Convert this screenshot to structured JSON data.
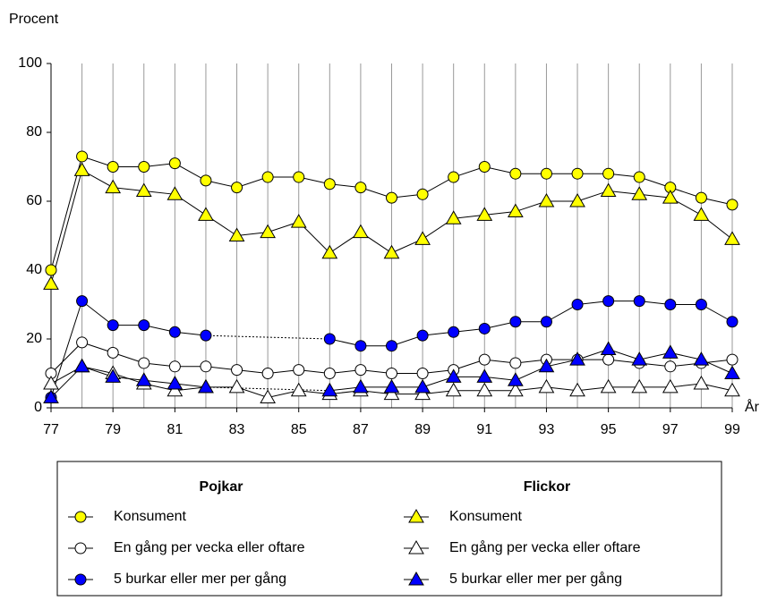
{
  "chart_data": {
    "type": "line",
    "y_label": "Procent",
    "x_label": "År",
    "x": [
      77,
      78,
      79,
      80,
      81,
      82,
      83,
      84,
      85,
      86,
      87,
      88,
      89,
      90,
      91,
      92,
      93,
      94,
      95,
      96,
      97,
      98,
      99
    ],
    "xlim": [
      77,
      99
    ],
    "xticks": [
      77,
      79,
      81,
      83,
      85,
      87,
      89,
      91,
      93,
      95,
      97,
      99
    ],
    "ylim": [
      0,
      100
    ],
    "yticks": [
      0,
      20,
      40,
      60,
      80,
      100
    ],
    "legend_titles": [
      "Pojkar",
      "Flickor"
    ],
    "series": [
      {
        "name": "Konsument",
        "color": "#ffff00",
        "marker": "circle",
        "values": [
          40,
          73,
          70,
          70,
          71,
          66,
          64,
          67,
          67,
          65,
          64,
          61,
          62,
          67,
          70,
          68,
          68,
          68,
          68,
          67,
          64,
          61,
          59
        ]
      },
      {
        "name": "En gång per vecka eller oftare",
        "color": "#ffffff",
        "marker": "circle",
        "values": [
          10,
          19,
          16,
          13,
          12,
          12,
          11,
          10,
          11,
          10,
          11,
          10,
          10,
          11,
          14,
          13,
          14,
          14,
          14,
          13,
          12,
          13,
          14
        ]
      },
      {
        "name": "5 burkar eller mer per gång",
        "color": "#0000ff",
        "marker": "circle",
        "values": [
          3,
          31,
          24,
          24,
          22,
          21,
          null,
          null,
          null,
          20,
          18,
          18,
          21,
          22,
          23,
          25,
          25,
          30,
          31,
          31,
          30,
          30,
          25
        ]
      },
      {
        "name": "Konsument",
        "color": "#ffff00",
        "marker": "triangle",
        "values": [
          36,
          69,
          64,
          63,
          62,
          56,
          50,
          51,
          54,
          45,
          51,
          45,
          49,
          55,
          56,
          57,
          60,
          60,
          63,
          62,
          61,
          56,
          49
        ]
      },
      {
        "name": "En gång per vecka eller oftare",
        "color": "#ffffff",
        "marker": "triangle",
        "values": [
          7,
          12,
          10,
          7,
          5,
          6,
          6,
          3,
          5,
          4,
          5,
          4,
          4,
          5,
          5,
          5,
          6,
          5,
          6,
          6,
          6,
          7,
          5
        ]
      },
      {
        "name": "5 burkar eller mer per gång",
        "color": "#0000ff",
        "marker": "triangle",
        "values": [
          3,
          12,
          9,
          8,
          7,
          6,
          null,
          null,
          null,
          5,
          6,
          6,
          6,
          9,
          9,
          8,
          12,
          14,
          17,
          14,
          16,
          14,
          10
        ]
      }
    ]
  }
}
